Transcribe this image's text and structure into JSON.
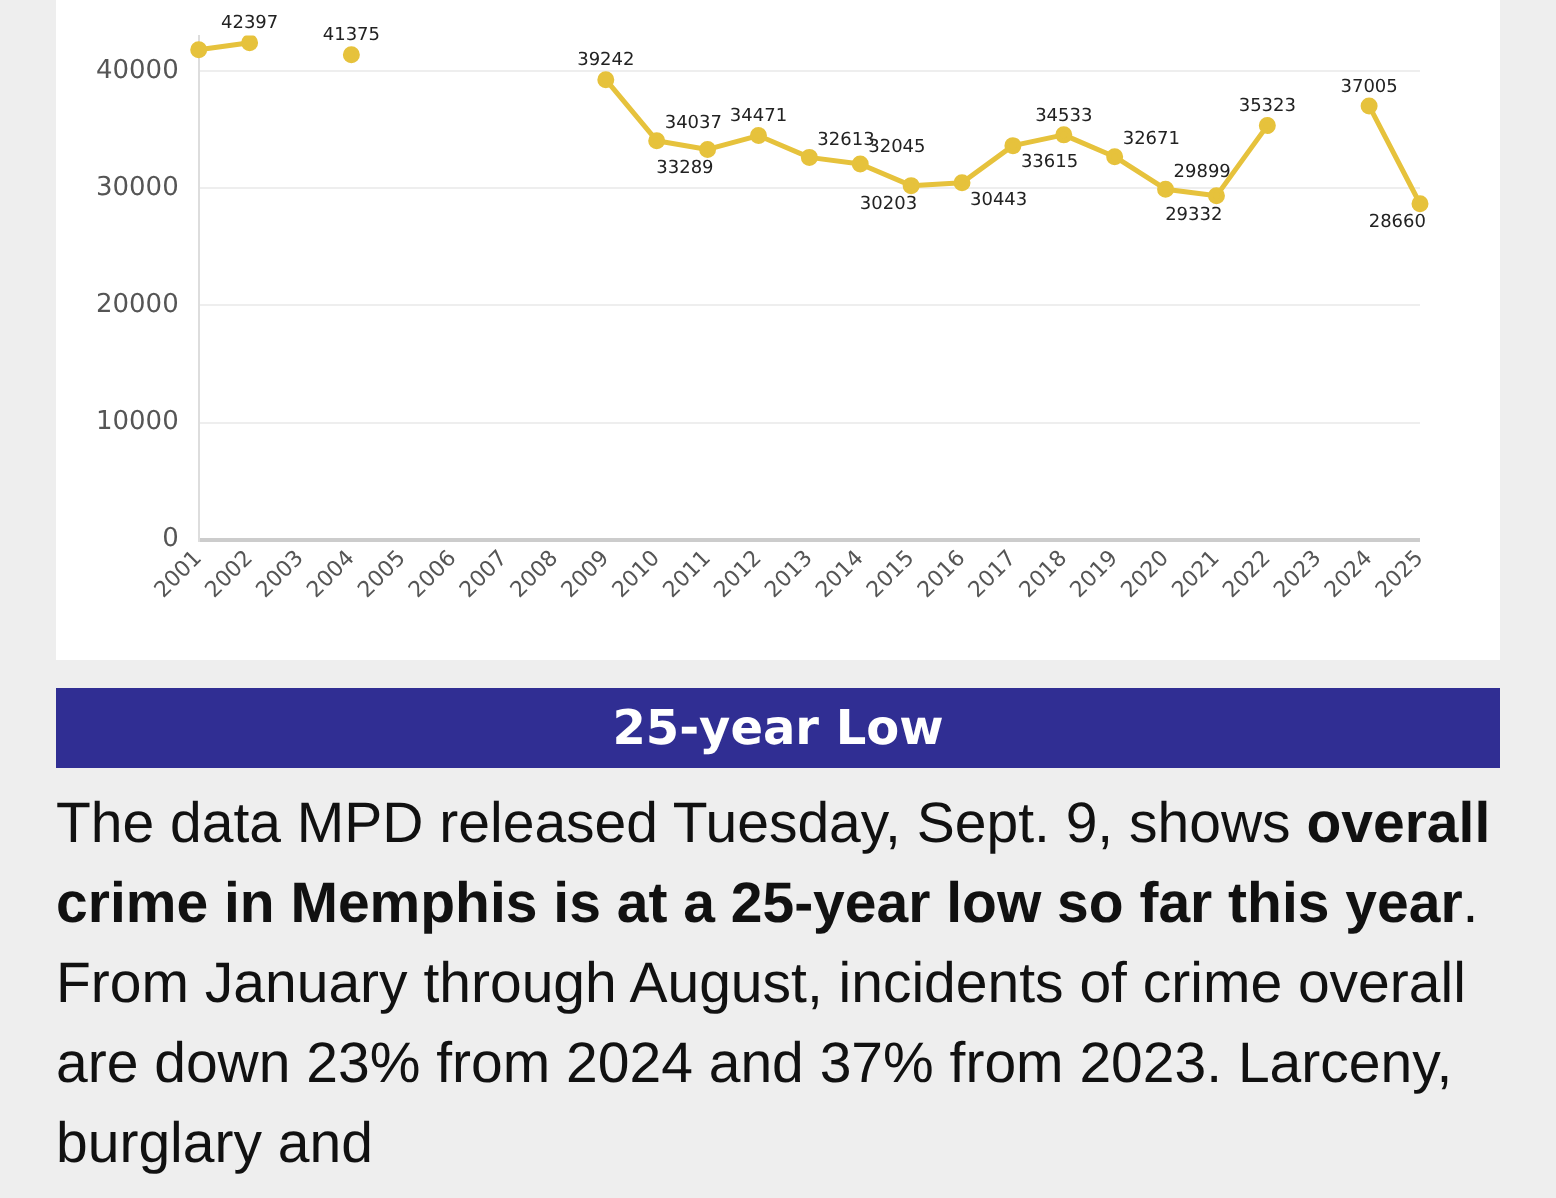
{
  "chart_data": {
    "type": "line",
    "categories": [
      "2001",
      "2002",
      "2003",
      "2004",
      "2005",
      "2006",
      "2007",
      "2008",
      "2009",
      "2010",
      "2011",
      "2012",
      "2013",
      "2014",
      "2015",
      "2016",
      "2017",
      "2018",
      "2019",
      "2020",
      "2021",
      "2022",
      "2023",
      "2024",
      "2025"
    ],
    "series": [
      {
        "color": "#e6c23c",
        "values": [
          41800,
          42397,
          null,
          41375,
          null,
          null,
          null,
          null,
          39242,
          34037,
          33289,
          34471,
          32613,
          32045,
          30203,
          30443,
          33615,
          34533,
          32671,
          29899,
          29332,
          35323,
          null,
          37005,
          28660
        ],
        "value_labels": [
          null,
          "42397",
          null,
          "41375",
          null,
          null,
          null,
          null,
          "39242",
          "34037",
          "33289",
          "34471",
          "32613",
          "32045",
          "30203",
          "30443",
          "33615",
          "34533",
          "32671",
          "29899",
          "29332",
          "35323",
          null,
          "37005",
          "28660"
        ]
      }
    ],
    "ylim": [
      0,
      43000
    ],
    "yticks": [
      0,
      10000,
      20000,
      30000,
      40000
    ],
    "grid": "y",
    "legend": false,
    "marker": "circle",
    "line_style": "solid",
    "annotations": [
      "25-year Low",
      "The data MPD released Tuesday, Sept. 9, shows ",
      "overall crime in Memphis is at a 25-year low so far this year",
      ". From January through August, incidents of crime overall are down 23% from 2024 and 37% from 2023. Larceny, burglary and"
    ]
  }
}
